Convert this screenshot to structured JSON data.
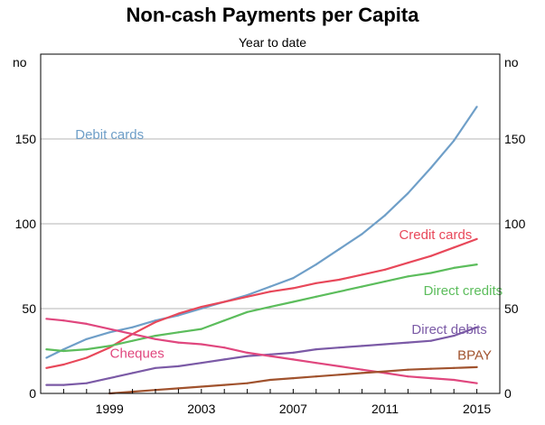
{
  "chart_data": {
    "type": "line",
    "title": "Non-cash Payments per Capita",
    "subtitle": "Year to date",
    "y_unit_left": "no",
    "y_unit_right": "no",
    "xlim": [
      1996.0,
      2016.0
    ],
    "ylim": [
      0,
      200
    ],
    "x_ticks": [
      1999,
      2003,
      2007,
      2011,
      2015
    ],
    "x_tick_labels": [
      "1999",
      "2003",
      "2007",
      "2011",
      "2015"
    ],
    "y_ticks": [
      0,
      50,
      100,
      150
    ],
    "y_tick_labels": [
      "0",
      "50",
      "100",
      "150"
    ],
    "grid": "horizontal",
    "legend": "inline labels",
    "series": [
      {
        "name": "Debit cards",
        "color": "#6f9fc8",
        "label_at": [
          1999.0,
          150.0
        ],
        "x": [
          1996.25,
          1997,
          1998,
          1999,
          2000,
          2001,
          2002,
          2003,
          2004,
          2005,
          2006,
          2007,
          2008,
          2009,
          2010,
          2011,
          2012,
          2013,
          2014,
          2015
        ],
        "y": [
          21,
          26,
          32,
          36,
          39,
          43,
          46,
          50,
          54,
          58,
          63,
          68,
          76,
          85,
          94,
          105,
          118,
          133,
          149,
          169
        ]
      },
      {
        "name": "Credit cards",
        "color": "#e8485a",
        "label_at": [
          2013.2,
          91.0
        ],
        "x": [
          1996.25,
          1997,
          1998,
          1999,
          2000,
          2001,
          2002,
          2003,
          2004,
          2005,
          2006,
          2007,
          2008,
          2009,
          2010,
          2011,
          2012,
          2013,
          2014,
          2015
        ],
        "y": [
          15,
          17,
          21,
          27,
          35,
          42,
          47,
          51,
          54,
          57,
          60,
          62,
          65,
          67,
          70,
          73,
          77,
          81,
          86,
          91
        ]
      },
      {
        "name": "Direct credits",
        "color": "#5cbd5c",
        "label_at": [
          2014.4,
          58.0
        ],
        "x": [
          1996.25,
          1997,
          1998,
          1999,
          2000,
          2001,
          2002,
          2003,
          2004,
          2005,
          2006,
          2007,
          2008,
          2009,
          2010,
          2011,
          2012,
          2013,
          2014,
          2015
        ],
        "y": [
          26,
          25,
          26,
          28,
          31,
          34,
          36,
          38,
          43,
          48,
          51,
          54,
          57,
          60,
          63,
          66,
          69,
          71,
          74,
          76
        ]
      },
      {
        "name": "Direct debits",
        "color": "#7b5aa6",
        "label_at": [
          2013.8,
          35.0
        ],
        "x": [
          1996.25,
          1997,
          1998,
          1999,
          2000,
          2001,
          2002,
          2003,
          2004,
          2005,
          2006,
          2007,
          2008,
          2009,
          2010,
          2011,
          2012,
          2013,
          2014,
          2015
        ],
        "y": [
          5,
          5,
          6,
          9,
          12,
          15,
          16,
          18,
          20,
          22,
          23,
          24,
          26,
          27,
          28,
          29,
          30,
          31,
          34,
          39
        ]
      },
      {
        "name": "Cheques",
        "color": "#e0477e",
        "label_at": [
          2000.2,
          21.0
        ],
        "x": [
          1996.25,
          1997,
          1998,
          1999,
          2000,
          2001,
          2002,
          2003,
          2004,
          2005,
          2006,
          2007,
          2008,
          2009,
          2010,
          2011,
          2012,
          2013,
          2014,
          2015
        ],
        "y": [
          44,
          43,
          41,
          38,
          35,
          32,
          30,
          29,
          27,
          24,
          22,
          20,
          18,
          16,
          14,
          12,
          10,
          9,
          8,
          6
        ]
      },
      {
        "name": "BPAY",
        "color": "#a0522d",
        "label_at": [
          2014.9,
          20.0
        ],
        "x": [
          1999,
          2000,
          2001,
          2002,
          2003,
          2004,
          2005,
          2006,
          2007,
          2008,
          2009,
          2010,
          2011,
          2012,
          2013,
          2014,
          2015
        ],
        "y": [
          0,
          1,
          2,
          3,
          4,
          5,
          6,
          8,
          9,
          10,
          11,
          12,
          13,
          14,
          14.5,
          15,
          15.5
        ]
      }
    ]
  }
}
